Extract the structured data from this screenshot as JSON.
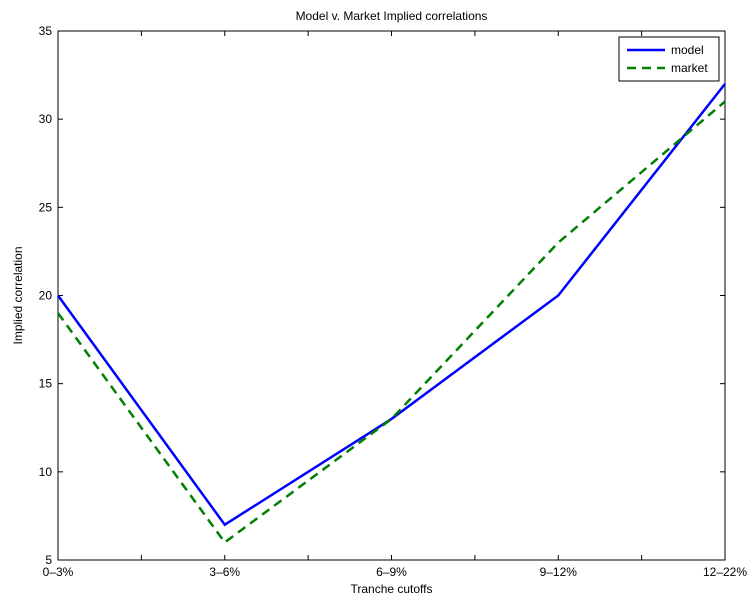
{
  "chart_data": {
    "type": "line",
    "title": "Model v. Market Implied correlations",
    "xlabel": "Tranche cutoffs",
    "ylabel": "Implied correlation",
    "categories": [
      "0–3%",
      "3–6%",
      "6–9%",
      "9–12%",
      "12–22%"
    ],
    "ylim": [
      5,
      35
    ],
    "yticks": [
      5,
      10,
      15,
      20,
      25,
      30,
      35
    ],
    "grid": false,
    "legend_position": "top-right",
    "series": [
      {
        "name": "model",
        "values": [
          20,
          7,
          13,
          20,
          32
        ],
        "color": "#0000ff",
        "dash": "solid"
      },
      {
        "name": "market",
        "values": [
          19,
          6,
          13,
          23,
          31
        ],
        "color": "#007f00",
        "dash": "dashed"
      }
    ]
  }
}
